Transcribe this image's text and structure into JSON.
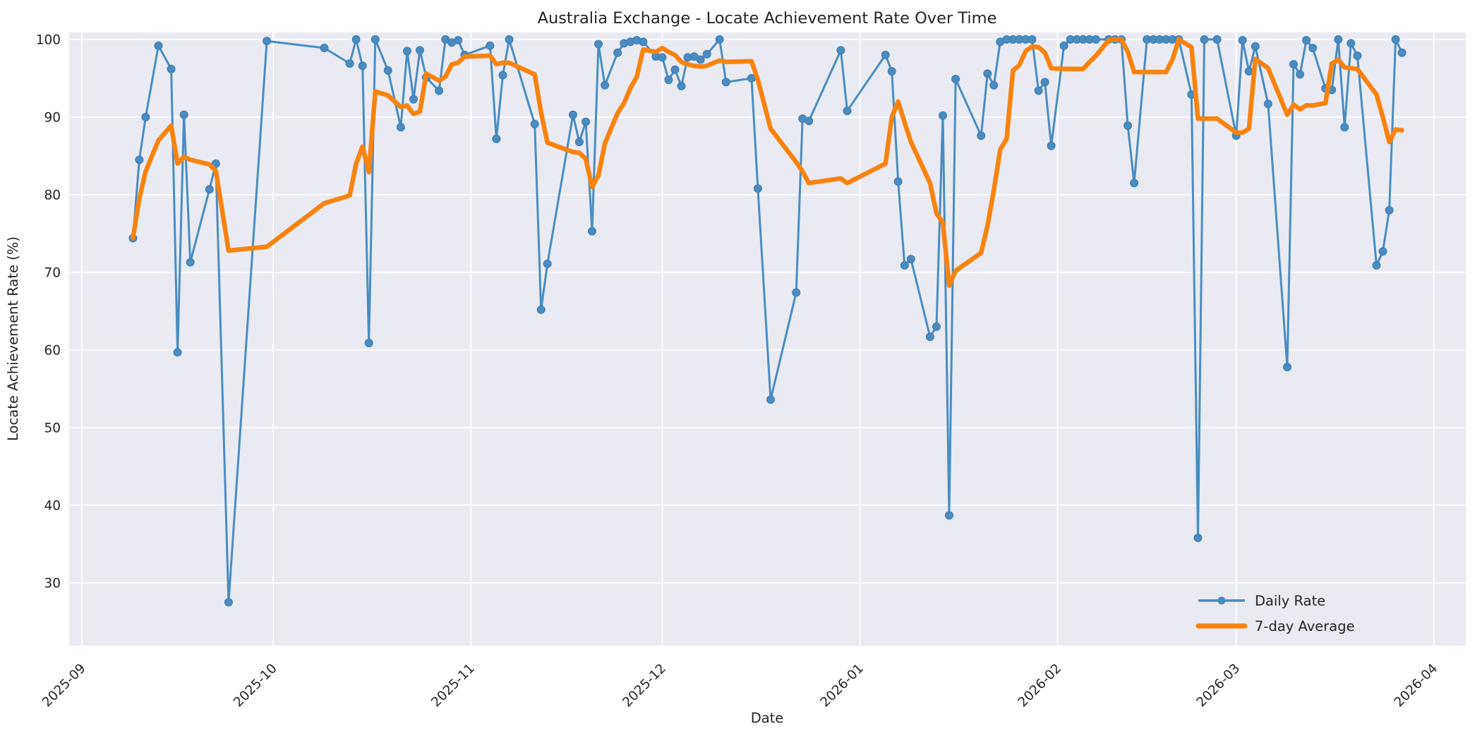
{
  "chart_data": {
    "type": "line",
    "title": "Australia Exchange - Locate Achievement Rate Over Time",
    "xlabel": "Date",
    "ylabel": "Locate Achievement Rate (%)",
    "grid": true,
    "figure_background": "#ffffff",
    "plot_background": "#eaeaf2",
    "grid_color": "#ffffff",
    "text_color": "#262626",
    "legend": {
      "position": "lower-right",
      "items": [
        "Daily Rate",
        "7-day Average"
      ]
    },
    "x_tick_labels": [
      "2025-09",
      "2025-10",
      "2025-11",
      "2025-12",
      "2026-01",
      "2026-02",
      "2026-03",
      "2026-04"
    ],
    "x_tick_dates": [
      "2025-09-01",
      "2025-10-01",
      "2025-11-01",
      "2025-12-01",
      "2026-01-01",
      "2026-02-01",
      "2026-03-01",
      "2026-04-01"
    ],
    "y_ticks": [
      30,
      40,
      50,
      60,
      70,
      80,
      90,
      100
    ],
    "xlim": [
      "2025-08-30",
      "2026-04-06"
    ],
    "ylim": [
      21.9,
      100.9
    ],
    "dates": [
      "2025-09-09",
      "2025-09-10",
      "2025-09-11",
      "2025-09-13",
      "2025-09-15",
      "2025-09-16",
      "2025-09-17",
      "2025-09-18",
      "2025-09-21",
      "2025-09-22",
      "2025-09-24",
      "2025-09-30",
      "2025-10-09",
      "2025-10-13",
      "2025-10-14",
      "2025-10-15",
      "2025-10-16",
      "2025-10-17",
      "2025-10-19",
      "2025-10-21",
      "2025-10-22",
      "2025-10-23",
      "2025-10-24",
      "2025-10-25",
      "2025-10-27",
      "2025-10-28",
      "2025-10-29",
      "2025-10-30",
      "2025-10-31",
      "2025-11-04",
      "2025-11-05",
      "2025-11-06",
      "2025-11-07",
      "2025-11-11",
      "2025-11-12",
      "2025-11-13",
      "2025-11-17",
      "2025-11-18",
      "2025-11-19",
      "2025-11-20",
      "2025-11-21",
      "2025-11-22",
      "2025-11-24",
      "2025-11-25",
      "2025-11-26",
      "2025-11-27",
      "2025-11-28",
      "2025-11-30",
      "2025-12-01",
      "2025-12-02",
      "2025-12-03",
      "2025-12-04",
      "2025-12-05",
      "2025-12-06",
      "2025-12-07",
      "2025-12-08",
      "2025-12-10",
      "2025-12-11",
      "2025-12-15",
      "2025-12-16",
      "2025-12-18",
      "2025-12-22",
      "2025-12-23",
      "2025-12-24",
      "2025-12-29",
      "2025-12-30",
      "2026-01-05",
      "2026-01-06",
      "2026-01-07",
      "2026-01-08",
      "2026-01-09",
      "2026-01-12",
      "2026-01-13",
      "2026-01-14",
      "2026-01-15",
      "2026-01-16",
      "2026-01-20",
      "2026-01-21",
      "2026-01-22",
      "2026-01-23",
      "2026-01-24",
      "2026-01-25",
      "2026-01-26",
      "2026-01-27",
      "2026-01-28",
      "2026-01-29",
      "2026-01-30",
      "2026-01-31",
      "2026-02-02",
      "2026-02-03",
      "2026-02-04",
      "2026-02-05",
      "2026-02-06",
      "2026-02-07",
      "2026-02-09",
      "2026-02-10",
      "2026-02-11",
      "2026-02-12",
      "2026-02-13",
      "2026-02-15",
      "2026-02-16",
      "2026-02-17",
      "2026-02-18",
      "2026-02-19",
      "2026-02-20",
      "2026-02-22",
      "2026-02-23",
      "2026-02-24",
      "2026-02-26",
      "2026-03-01",
      "2026-03-02",
      "2026-03-03",
      "2026-03-04",
      "2026-03-06",
      "2026-03-09",
      "2026-03-10",
      "2026-03-11",
      "2026-03-12",
      "2026-03-13",
      "2026-03-15",
      "2026-03-16",
      "2026-03-17",
      "2026-03-18",
      "2026-03-19",
      "2026-03-20",
      "2026-03-23",
      "2026-03-24",
      "2026-03-25",
      "2026-03-26",
      "2026-03-27"
    ],
    "series": [
      {
        "name": "Daily Rate",
        "color": "#4a8cc2",
        "marker": "circle",
        "line_width": 3,
        "marker_radius": 5.5,
        "values": [
          74.4,
          84.5,
          90.0,
          99.2,
          96.2,
          59.7,
          90.3,
          71.3,
          80.7,
          84.0,
          27.5,
          99.8,
          98.9,
          96.9,
          100,
          96.6,
          60.9,
          100,
          96.0,
          88.7,
          98.5,
          92.3,
          98.6,
          95.1,
          93.4,
          100,
          99.6,
          99.9,
          98.0,
          99.2,
          87.2,
          95.4,
          100,
          89.1,
          65.2,
          71.1,
          90.3,
          86.8,
          89.4,
          75.3,
          99.4,
          94.1,
          98.3,
          99.5,
          99.7,
          99.9,
          99.7,
          97.8,
          97.7,
          94.8,
          96.1,
          94.0,
          97.7,
          97.8,
          97.4,
          98.1,
          100,
          94.5,
          95.0,
          80.8,
          53.6,
          67.4,
          89.8,
          89.5,
          98.6,
          90.8,
          98.0,
          95.9,
          81.7,
          70.9,
          71.7,
          61.7,
          63.0,
          90.2,
          38.7,
          94.9,
          87.6,
          95.6,
          94.1,
          99.7,
          100,
          100,
          100,
          100,
          100,
          93.4,
          94.5,
          86.3,
          99.2,
          100,
          100,
          100,
          100,
          100,
          100,
          100,
          100,
          88.9,
          81.5,
          100,
          100,
          100,
          100,
          100,
          100,
          92.9,
          35.8,
          100,
          100,
          87.6,
          99.9,
          95.9,
          99.1,
          91.7,
          57.8,
          96.8,
          95.5,
          99.9,
          98.9,
          93.7,
          93.5,
          100,
          88.7,
          99.5,
          97.9,
          70.9,
          72.7,
          78.0,
          100,
          98.3
        ]
      },
      {
        "name": "7-day Average",
        "color": "#f8830f",
        "marker": "none",
        "line_width": 6.5,
        "rolling_window": 7,
        "values": [
          74.4,
          79.5,
          83.0,
          87.0,
          88.9,
          84.0,
          84.9,
          84.5,
          83.9,
          83.1,
          72.8,
          73.3,
          78.9,
          79.9,
          84.0,
          86.2,
          82.9,
          93.3,
          92.8,
          91.3,
          91.5,
          90.4,
          90.7,
          95.6,
          94.7,
          95.2,
          96.8,
          97.0,
          97.8,
          97.9,
          96.8,
          97.0,
          97.0,
          95.5,
          90.6,
          86.7,
          85.5,
          85.4,
          84.6,
          81.0,
          82.5,
          86.6,
          90.5,
          91.8,
          93.7,
          95.2,
          98.7,
          98.4,
          98.9,
          98.4,
          98.0,
          97.1,
          96.8,
          96.6,
          96.5,
          96.6,
          97.3,
          97.1,
          97.2,
          94.8,
          88.5,
          84.2,
          83.0,
          81.5,
          82.1,
          81.5,
          84.0,
          90.0,
          92.0,
          89.3,
          86.8,
          81.5,
          77.6,
          76.4,
          68.3,
          70.2,
          72.5,
          76.0,
          80.6,
          85.8,
          87.2,
          96.0,
          96.7,
          98.5,
          99.1,
          99.0,
          98.3,
          96.3,
          96.2,
          96.2,
          96.2,
          96.2,
          97.1,
          97.9,
          99.9,
          100.0,
          100.0,
          98.4,
          95.8,
          95.8,
          95.8,
          95.8,
          95.8,
          97.4,
          100.0,
          99.0,
          89.8,
          89.8,
          89.8,
          88.0,
          88.0,
          88.5,
          97.5,
          96.3,
          90.3,
          91.6,
          91.0,
          91.5,
          91.5,
          91.8,
          96.9,
          97.4,
          96.4,
          96.3,
          96.2,
          92.9,
          90.0,
          86.8,
          88.4,
          88.3
        ]
      }
    ]
  }
}
